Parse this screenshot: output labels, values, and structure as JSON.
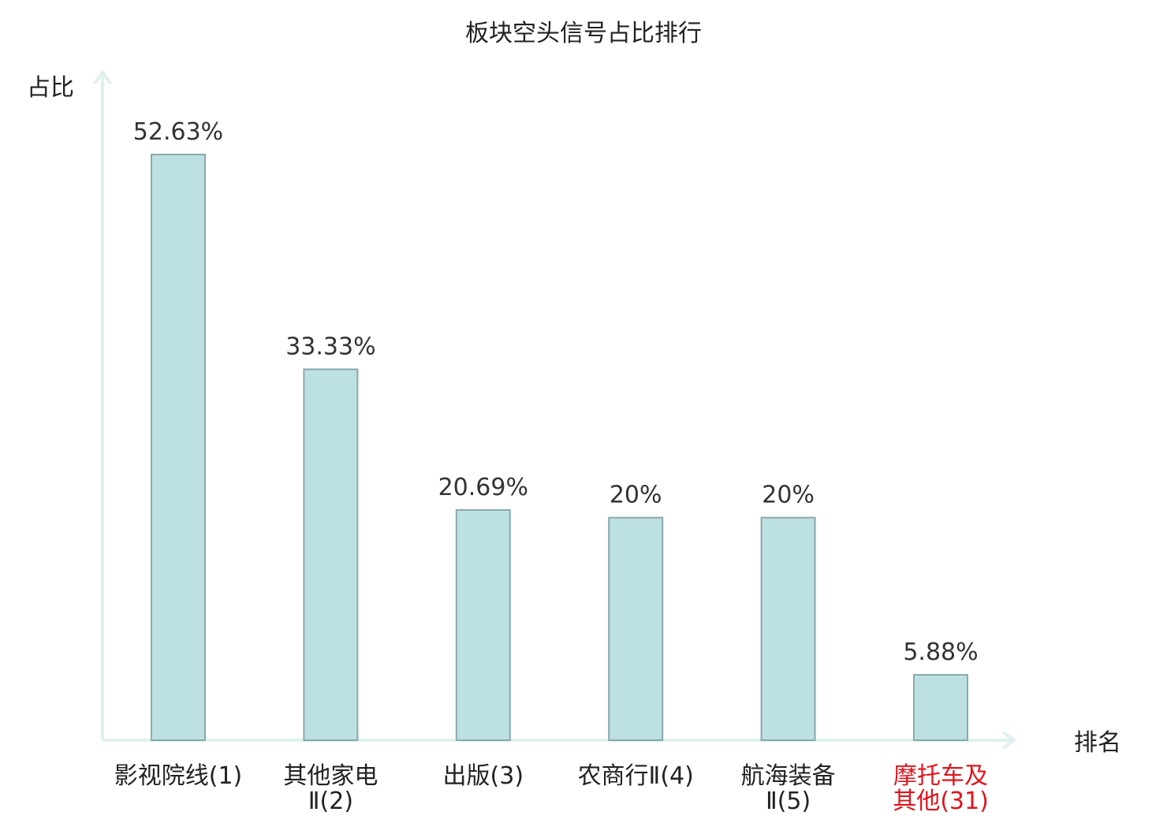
{
  "chart_data": {
    "type": "bar",
    "title": "板块空头信号占比排行",
    "ylabel": "占比",
    "xlabel": "排名",
    "categories": [
      [
        "影视院线(1)"
      ],
      [
        "其他家电",
        "Ⅱ(2)"
      ],
      [
        "出版(3)"
      ],
      [
        "农商行Ⅱ(4)"
      ],
      [
        "航海装备",
        "Ⅱ(5)"
      ],
      [
        "摩托车及",
        "其他(31)"
      ]
    ],
    "values": [
      52.63,
      33.33,
      20.69,
      20,
      20,
      5.88
    ],
    "value_labels": [
      "52.63%",
      "33.33%",
      "20.69%",
      "20%",
      "20%",
      "5.88%"
    ],
    "ylim": [
      0,
      52.63
    ],
    "highlight_index": 5,
    "colors": {
      "bar_fill": "#bde0e3",
      "bar_stroke": "#8aa9ab",
      "axis": "#dff1ee",
      "text": "#333333",
      "label": "#222222",
      "highlight": "#e0141c"
    },
    "grid": false,
    "legend": "none"
  }
}
